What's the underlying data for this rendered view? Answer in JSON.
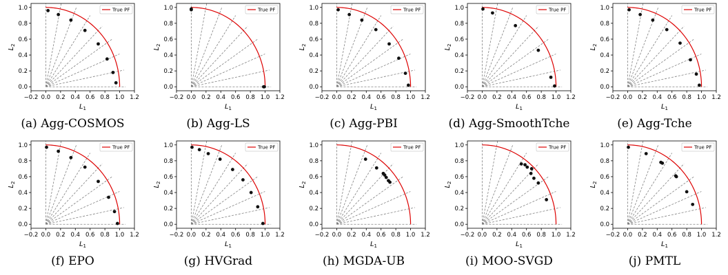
{
  "colors": {
    "pf": "#dd0000",
    "ref": "#808080",
    "point": "#111111",
    "axis": "#000000"
  },
  "chart_data": [
    {
      "type": "scatter",
      "caption": "(a) Agg-COSMOS",
      "xlabel": "L",
      "xlabel_sub": "1",
      "ylabel": "L",
      "ylabel_sub": "2",
      "legend": "True PF",
      "legend_loc": "upper right",
      "xlim": [
        -0.2,
        1.2
      ],
      "ylim": [
        -0.05,
        1.05
      ],
      "xticks": [
        "−0.2",
        "0.0",
        "0.2",
        "0.4",
        "0.6",
        "0.8",
        "1.0",
        "1.2"
      ],
      "yticks": [
        "0.0",
        "0.2",
        "0.4",
        "0.6",
        "0.8",
        "1.0"
      ],
      "points": [
        [
          0.03,
          0.96
        ],
        [
          0.17,
          0.91
        ],
        [
          0.34,
          0.84
        ],
        [
          0.53,
          0.71
        ],
        [
          0.71,
          0.54
        ],
        [
          0.83,
          0.35
        ],
        [
          0.91,
          0.18
        ],
        [
          0.95,
          0.05
        ]
      ]
    },
    {
      "type": "scatter",
      "caption": "(b) Agg-LS",
      "xlabel": "L",
      "xlabel_sub": "1",
      "ylabel": "L",
      "ylabel_sub": "2",
      "legend": "True PF",
      "legend_loc": "upper right",
      "xlim": [
        -0.2,
        1.2
      ],
      "ylim": [
        -0.05,
        1.05
      ],
      "xticks": [
        "−0.2",
        "0.0",
        "0.2",
        "0.4",
        "0.6",
        "0.8",
        "1.0",
        "1.2"
      ],
      "yticks": [
        "0.0",
        "0.2",
        "0.4",
        "0.6",
        "0.8",
        "1.0"
      ],
      "points": [
        [
          0.0,
          0.98
        ],
        [
          0.0,
          0.97
        ],
        [
          0.98,
          0.0
        ],
        [
          0.99,
          0.0
        ]
      ]
    },
    {
      "type": "scatter",
      "caption": "(c) Agg-PBI",
      "xlabel": "L",
      "xlabel_sub": "1",
      "ylabel": "L",
      "ylabel_sub": "2",
      "legend": "True PF",
      "legend_loc": "upper right",
      "xlim": [
        -0.2,
        1.2
      ],
      "ylim": [
        -0.05,
        1.05
      ],
      "xticks": [
        "−0.2",
        "0.0",
        "0.2",
        "0.4",
        "0.6",
        "0.8",
        "1.0",
        "1.2"
      ],
      "yticks": [
        "0.0",
        "0.2",
        "0.4",
        "0.6",
        "0.8",
        "1.0"
      ],
      "points": [
        [
          0.02,
          0.97
        ],
        [
          0.17,
          0.91
        ],
        [
          0.34,
          0.84
        ],
        [
          0.53,
          0.72
        ],
        [
          0.71,
          0.54
        ],
        [
          0.84,
          0.36
        ],
        [
          0.93,
          0.17
        ],
        [
          0.97,
          0.02
        ]
      ]
    },
    {
      "type": "scatter",
      "caption": "(d) Agg-SmoothTche",
      "xlabel": "L",
      "xlabel_sub": "1",
      "ylabel": "L",
      "ylabel_sub": "2",
      "legend": "True PF",
      "legend_loc": "upper right",
      "xlim": [
        -0.2,
        1.2
      ],
      "ylim": [
        -0.05,
        1.05
      ],
      "xticks": [
        "−0.2",
        "0.0",
        "0.2",
        "0.4",
        "0.6",
        "0.8",
        "1.0",
        "1.2"
      ],
      "yticks": [
        "0.0",
        "0.2",
        "0.4",
        "0.6",
        "0.8",
        "1.0"
      ],
      "points": [
        [
          0.01,
          0.98
        ],
        [
          0.14,
          0.93
        ],
        [
          0.45,
          0.77
        ],
        [
          0.76,
          0.46
        ],
        [
          0.93,
          0.12
        ],
        [
          0.98,
          0.01
        ]
      ]
    },
    {
      "type": "scatter",
      "caption": "(e) Agg-Tche",
      "xlabel": "L",
      "xlabel_sub": "1",
      "ylabel": "L",
      "ylabel_sub": "2",
      "legend": "True PF",
      "legend_loc": "upper right",
      "xlim": [
        -0.2,
        1.2
      ],
      "ylim": [
        -0.05,
        1.05
      ],
      "xticks": [
        "−0.2",
        "0.0",
        "0.2",
        "0.4",
        "0.6",
        "0.8",
        "1.0",
        "1.2"
      ],
      "yticks": [
        "0.0",
        "0.2",
        "0.4",
        "0.6",
        "0.8",
        "1.0"
      ],
      "points": [
        [
          0.02,
          0.97
        ],
        [
          0.17,
          0.91
        ],
        [
          0.34,
          0.84
        ],
        [
          0.53,
          0.72
        ],
        [
          0.71,
          0.55
        ],
        [
          0.85,
          0.34
        ],
        [
          0.93,
          0.16
        ],
        [
          0.97,
          0.02
        ]
      ]
    },
    {
      "type": "scatter",
      "caption": "(f) EPO",
      "xlabel": "L",
      "xlabel_sub": "1",
      "ylabel": "L",
      "ylabel_sub": "2",
      "legend": "True PF",
      "legend_loc": "upper right",
      "xlim": [
        -0.2,
        1.2
      ],
      "ylim": [
        -0.05,
        1.05
      ],
      "xticks": [
        "−0.2",
        "0.0",
        "0.2",
        "0.4",
        "0.6",
        "0.8",
        "1.0",
        "1.2"
      ],
      "yticks": [
        "0.0",
        "0.2",
        "0.4",
        "0.6",
        "0.8",
        "1.0"
      ],
      "points": [
        [
          0.01,
          0.97
        ],
        [
          0.17,
          0.92
        ],
        [
          0.34,
          0.84
        ],
        [
          0.53,
          0.72
        ],
        [
          0.71,
          0.54
        ],
        [
          0.85,
          0.34
        ],
        [
          0.93,
          0.16
        ],
        [
          0.97,
          0.01
        ]
      ]
    },
    {
      "type": "scatter",
      "caption": "(g) HVGrad",
      "xlabel": "L",
      "xlabel_sub": "1",
      "ylabel": "L",
      "ylabel_sub": "2",
      "legend": "True PF",
      "legend_loc": "upper right",
      "xlim": [
        -0.2,
        1.2
      ],
      "ylim": [
        -0.05,
        1.05
      ],
      "xticks": [
        "−0.2",
        "0.0",
        "0.2",
        "0.4",
        "0.6",
        "0.8",
        "1.0",
        "1.2"
      ],
      "yticks": [
        "0.0",
        "0.2",
        "0.4",
        "0.6",
        "0.8",
        "1.0"
      ],
      "points": [
        [
          0.01,
          0.97
        ],
        [
          0.11,
          0.94
        ],
        [
          0.23,
          0.89
        ],
        [
          0.39,
          0.82
        ],
        [
          0.56,
          0.69
        ],
        [
          0.7,
          0.56
        ],
        [
          0.81,
          0.4
        ],
        [
          0.9,
          0.22
        ],
        [
          0.97,
          0.01
        ]
      ]
    },
    {
      "type": "scatter",
      "caption": "(h) MGDA-UB",
      "xlabel": "L",
      "xlabel_sub": "1",
      "ylabel": "L",
      "ylabel_sub": "2",
      "legend": "True PF",
      "legend_loc": "upper right",
      "xlim": [
        -0.2,
        1.2
      ],
      "ylim": [
        -0.05,
        1.05
      ],
      "xticks": [
        "−0.2",
        "0.0",
        "0.2",
        "0.4",
        "0.6",
        "0.8",
        "1.0",
        "1.2"
      ],
      "yticks": [
        "0.0",
        "0.2",
        "0.4",
        "0.6",
        "0.8",
        "1.0"
      ],
      "points": [
        [
          0.39,
          0.82
        ],
        [
          0.54,
          0.71
        ],
        [
          0.63,
          0.64
        ],
        [
          0.65,
          0.62
        ],
        [
          0.67,
          0.59
        ],
        [
          0.72,
          0.53
        ],
        [
          0.7,
          0.55
        ]
      ]
    },
    {
      "type": "scatter",
      "caption": "(i) MOO-SVGD",
      "xlabel": "L",
      "xlabel_sub": "1",
      "ylabel": "L",
      "ylabel_sub": "2",
      "legend": "True PF",
      "legend_loc": "upper right",
      "xlim": [
        -0.2,
        1.2
      ],
      "ylim": [
        -0.05,
        1.05
      ],
      "xticks": [
        "−0.2",
        "0.0",
        "0.2",
        "0.4",
        "0.6",
        "0.8",
        "1.0",
        "1.2"
      ],
      "yticks": [
        "0.0",
        "0.2",
        "0.4",
        "0.6",
        "0.8",
        "1.0"
      ],
      "points": [
        [
          0.53,
          0.76
        ],
        [
          0.61,
          0.72
        ],
        [
          0.58,
          0.75
        ],
        [
          0.67,
          0.7
        ],
        [
          0.66,
          0.64
        ],
        [
          0.7,
          0.58
        ],
        [
          0.76,
          0.52
        ],
        [
          0.87,
          0.31
        ]
      ]
    },
    {
      "type": "scatter",
      "caption": "(j) PMTL",
      "xlabel": "L",
      "xlabel_sub": "1",
      "ylabel": "L",
      "ylabel_sub": "2",
      "legend": "True PF",
      "legend_loc": "upper right",
      "xlim": [
        -0.2,
        1.2
      ],
      "ylim": [
        -0.05,
        1.05
      ],
      "xticks": [
        "−0.2",
        "0.0",
        "0.2",
        "0.4",
        "0.6",
        "0.8",
        "1.0",
        "1.2"
      ],
      "yticks": [
        "0.0",
        "0.2",
        "0.4",
        "0.6",
        "0.8",
        "1.0"
      ],
      "points": [
        [
          0.01,
          0.97
        ],
        [
          0.25,
          0.89
        ],
        [
          0.45,
          0.78
        ],
        [
          0.47,
          0.77
        ],
        [
          0.65,
          0.61
        ],
        [
          0.66,
          0.6
        ],
        [
          0.8,
          0.41
        ],
        [
          0.88,
          0.25
        ]
      ]
    }
  ]
}
